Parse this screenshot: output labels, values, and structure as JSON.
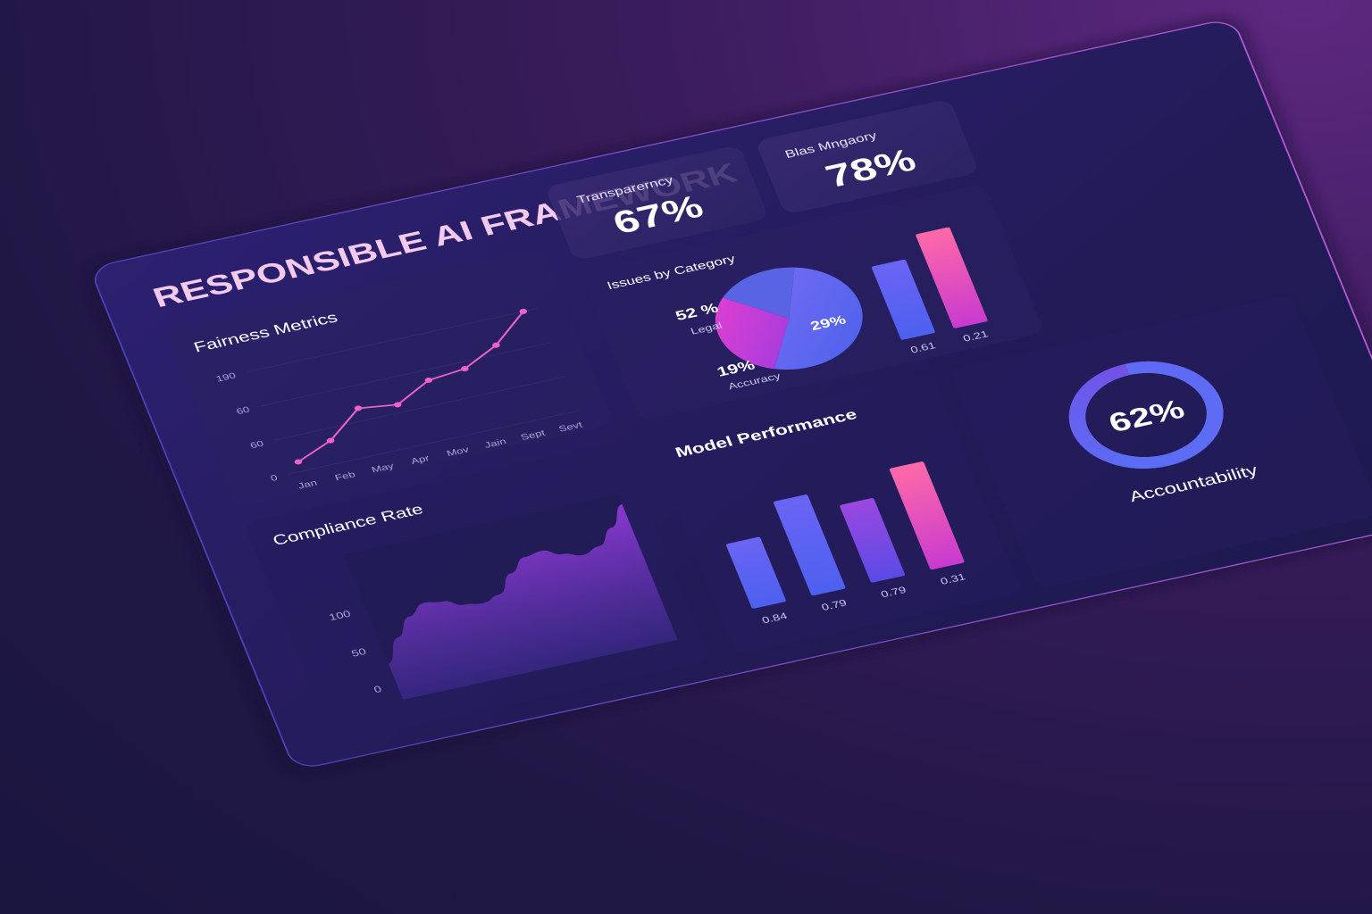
{
  "dashboard": {
    "title": "RESPONSIBLE AI FRAMEWORK"
  },
  "kpis": {
    "transparency": {
      "label": "Transparerncy",
      "value": "67%"
    },
    "bias": {
      "label": "Blas Mngaory",
      "value": "78%"
    }
  },
  "colors": {
    "panel": "#241d55",
    "card": "#2d2360",
    "accent_pink": "#f062c8",
    "accent_blue": "#4f6cf0",
    "accent_purple": "#8a3ed0",
    "text": "#ffffff",
    "muted": "#a9a3d6"
  },
  "chart_data": [
    {
      "type": "line",
      "title": "Fairness Metrics",
      "categories": [
        "Jan",
        "Feb",
        "May",
        "Apr",
        "Mov",
        "Jain",
        "Sept",
        "Sevt"
      ],
      "y_tick_labels": [
        "190",
        "60",
        "60",
        "0"
      ],
      "values": [
        20,
        48,
        100,
        90,
        125,
        132,
        165,
        220
      ],
      "ylim": [
        0,
        240
      ],
      "grid": true,
      "line_color": "#f062c8"
    },
    {
      "type": "pie",
      "title": "Issues by Category",
      "slices": [
        {
          "name": "Legal",
          "label": "52 %",
          "value": 52,
          "color": "#6a6cf0"
        },
        {
          "name": "",
          "label": "29%",
          "value": 29,
          "color": "#d63fd4"
        },
        {
          "name": "Accuracy",
          "label": "19%",
          "value": 19,
          "color": "#5a6ae8"
        }
      ]
    },
    {
      "type": "bar",
      "title": "",
      "values": [
        0.61,
        0.21
      ],
      "value_labels": [
        "0.61",
        "0.21"
      ],
      "colors": [
        "#5b5cf0",
        "#ee5ca8"
      ]
    },
    {
      "type": "area",
      "title": "Compliance Rate",
      "y_tick_labels": [
        "100",
        "50",
        "0"
      ],
      "ylim": [
        0,
        100
      ],
      "values": [
        30,
        48,
        62,
        70,
        68,
        62,
        60,
        64,
        78,
        88,
        90,
        84,
        80,
        84,
        96,
        112
      ],
      "color": "#7a35c8"
    },
    {
      "type": "bar",
      "title": "Model Performance",
      "values": [
        0.84,
        0.79,
        0.79,
        0.31
      ],
      "value_labels": [
        "0.84",
        "0.79",
        "0.79",
        "0.31"
      ],
      "bar_heights": [
        0.55,
        0.8,
        0.66,
        0.86
      ],
      "colors": [
        "#4d63f2",
        "#4b61ee",
        "#7b45d8",
        "#f05aa8"
      ]
    },
    {
      "type": "gauge",
      "title": "Accountability",
      "value": 62,
      "label": "62%"
    }
  ]
}
